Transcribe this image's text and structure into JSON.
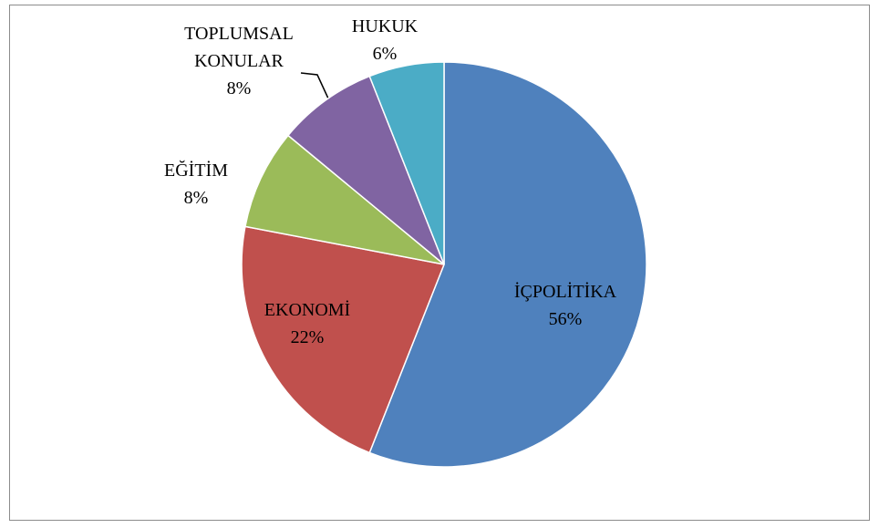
{
  "chart_data": {
    "type": "pie",
    "categories": [
      "İÇPOLİTİKA",
      "EKONOMİ",
      "EĞİTİM",
      "TOPLUMSAL KONULAR",
      "HUKUK"
    ],
    "values": [
      56,
      22,
      8,
      8,
      6
    ],
    "value_labels": [
      "56%",
      "22%",
      "8%",
      "8%",
      "6%"
    ],
    "colors": [
      "#4f81bd",
      "#c0504d",
      "#9bbb59",
      "#8064a2",
      "#4bacc6"
    ]
  }
}
